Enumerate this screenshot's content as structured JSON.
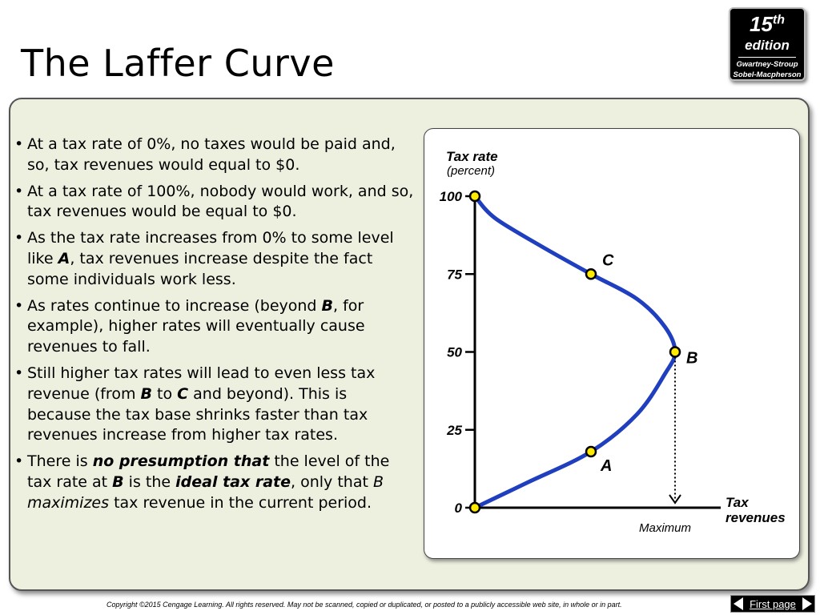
{
  "slide_title": "The Laffer Curve",
  "badge": {
    "number": "15",
    "suffix": "th",
    "word": "edition",
    "authors_line1": "Gwartney-Stroup",
    "authors_line2": "Sobel-Macpherson"
  },
  "bullets": [
    [
      {
        "t": "At a tax rate of 0%, no taxes would be paid and, so, tax revenues would equal to $0."
      }
    ],
    [
      {
        "t": "At a tax rate of 100%, nobody would work, and so, tax revenues would be equal to $0."
      }
    ],
    [
      {
        "t": "As the tax rate increases from 0% to some level like "
      },
      {
        "t": "A",
        "s": "bi"
      },
      {
        "t": ", tax revenues increase despite the fact some individuals work less."
      }
    ],
    [
      {
        "t": "As rates continue to increase (beyond "
      },
      {
        "t": "B",
        "s": "bi"
      },
      {
        "t": ", for example), higher rates will eventually cause revenues to fall."
      }
    ],
    [
      {
        "t": "Still higher tax rates will lead to even less tax revenue (from "
      },
      {
        "t": "B",
        "s": "bi"
      },
      {
        "t": " to "
      },
      {
        "t": "C",
        "s": "bi"
      },
      {
        "t": " and beyond). This is because the tax base shrinks faster than tax revenues increase from higher tax rates."
      }
    ],
    [
      {
        "t": "There is "
      },
      {
        "t": "no presumption that",
        "s": "bi"
      },
      {
        "t": " the level of the tax rate at "
      },
      {
        "t": "B",
        "s": "bi"
      },
      {
        "t": " is the "
      },
      {
        "t": "ideal tax rate",
        "s": "bi"
      },
      {
        "t": ", only that "
      },
      {
        "t": "B maximizes",
        "s": "i"
      },
      {
        "t": " tax revenue in the current period."
      }
    ]
  ],
  "chart_data": {
    "type": "line",
    "title": "",
    "ylabel": "Tax rate",
    "ylabel_sub": "(percent)",
    "xlabel_line1": "Tax",
    "xlabel_line2": "revenues",
    "y_ticks": [
      "0",
      "25",
      "50",
      "75",
      "100"
    ],
    "x_marker_label": "Maximum",
    "ylim": [
      0,
      100
    ],
    "xlim": [
      0,
      1.2
    ],
    "curve": {
      "color": "#1f3fbf",
      "points": [
        [
          0,
          0
        ],
        [
          0.26,
          8
        ],
        [
          0.58,
          18
        ],
        [
          0.81,
          30
        ],
        [
          0.95,
          43
        ],
        [
          1,
          50
        ],
        [
          0.95,
          58
        ],
        [
          0.81,
          67
        ],
        [
          0.58,
          75
        ],
        [
          0.33,
          84
        ],
        [
          0.1,
          93
        ],
        [
          0,
          100
        ]
      ]
    },
    "labeled_points": [
      {
        "name": "A",
        "x": 0.58,
        "y": 18
      },
      {
        "name": "B",
        "x": 1,
        "y": 50
      },
      {
        "name": "C",
        "x": 0.58,
        "y": 75
      }
    ],
    "end_points": [
      {
        "x": 0,
        "y": 0
      },
      {
        "x": 0,
        "y": 100
      }
    ],
    "marker_color": "#ffeb00"
  },
  "footer": {
    "copyright": "Copyright ©2015 Cengage Learning. All rights reserved. May not be scanned, copied or duplicated, or posted to a publicly accessible web site, in whole or in part.",
    "nav_label": "First page"
  }
}
